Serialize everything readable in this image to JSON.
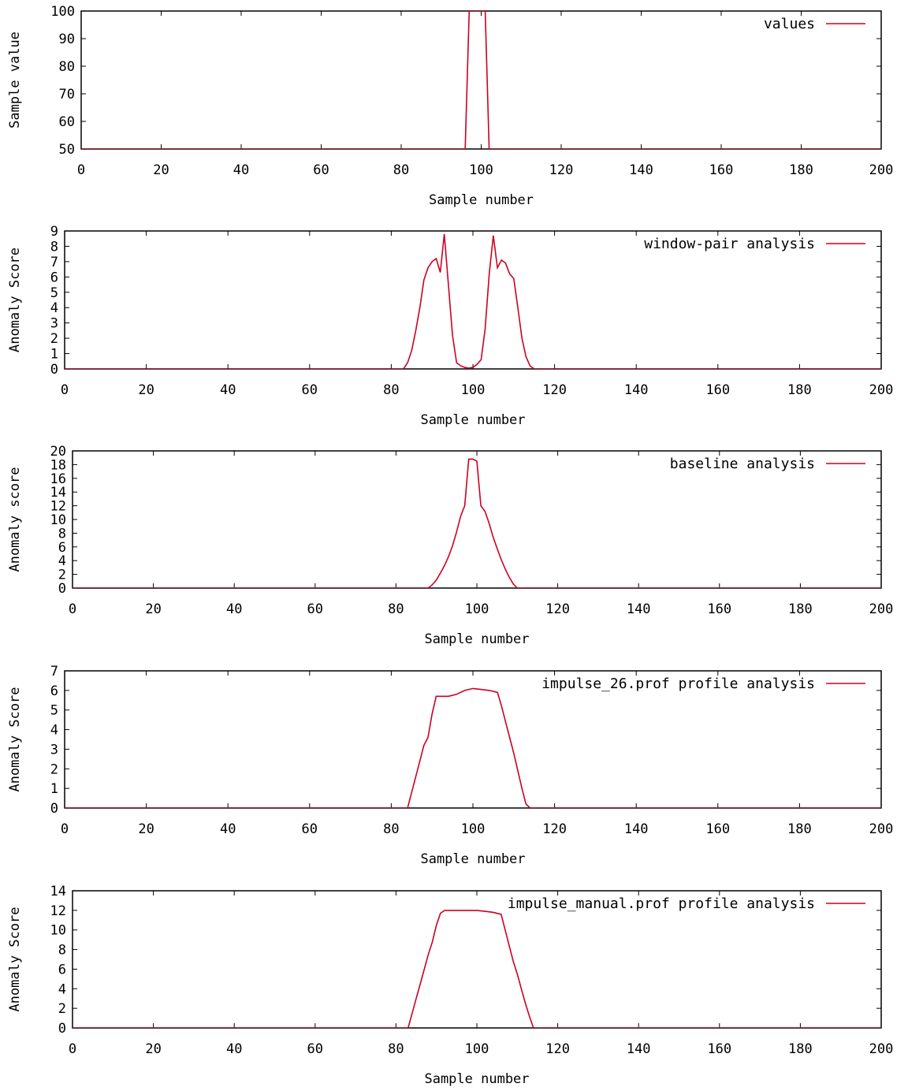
{
  "chart_data": [
    {
      "type": "line",
      "xlabel": "Sample number",
      "ylabel": "Sample value",
      "xlim": [
        0,
        200
      ],
      "ylim": [
        50,
        100
      ],
      "xticks": [
        0,
        20,
        40,
        60,
        80,
        100,
        120,
        140,
        160,
        180,
        200
      ],
      "yticks": [
        50,
        60,
        70,
        80,
        90,
        100
      ],
      "grid": false,
      "legend_position": "top-right",
      "color": "#cc0022",
      "series": [
        {
          "name": "values",
          "x": [
            0,
            96,
            97,
            98,
            99,
            100,
            101,
            102,
            200
          ],
          "y": [
            50,
            50,
            100,
            100,
            100,
            100,
            100,
            50,
            50
          ]
        }
      ]
    },
    {
      "type": "line",
      "xlabel": "Sample number",
      "ylabel": "Anomaly Score",
      "xlim": [
        0,
        200
      ],
      "ylim": [
        0,
        9
      ],
      "xticks": [
        0,
        20,
        40,
        60,
        80,
        100,
        120,
        140,
        160,
        180,
        200
      ],
      "yticks": [
        0,
        1,
        2,
        3,
        4,
        5,
        6,
        7,
        8,
        9
      ],
      "grid": false,
      "legend_position": "top-right",
      "color": "#cc0022",
      "series": [
        {
          "name": "window-pair analysis",
          "x": [
            0,
            83,
            84,
            85,
            86,
            87,
            88,
            89,
            90,
            91,
            92,
            93,
            94,
            95,
            96,
            97,
            98,
            99,
            100,
            101,
            102,
            103,
            104,
            105,
            106,
            107,
            108,
            109,
            110,
            111,
            112,
            113,
            114,
            115,
            200
          ],
          "y": [
            0,
            0,
            0.4,
            1.2,
            2.5,
            4.0,
            5.8,
            6.6,
            7.0,
            7.2,
            6.3,
            8.8,
            5.5,
            2.2,
            0.4,
            0.2,
            0.1,
            0.05,
            0.1,
            0.3,
            0.6,
            2.6,
            6.2,
            8.7,
            6.6,
            7.1,
            6.9,
            6.2,
            5.9,
            4.0,
            2.0,
            0.8,
            0.2,
            0,
            0
          ]
        }
      ]
    },
    {
      "type": "line",
      "xlabel": "Sample number",
      "ylabel": "Anomaly score",
      "xlim": [
        0,
        200
      ],
      "ylim": [
        0,
        20
      ],
      "xticks": [
        0,
        20,
        40,
        60,
        80,
        100,
        120,
        140,
        160,
        180,
        200
      ],
      "yticks": [
        0,
        2,
        4,
        6,
        8,
        10,
        12,
        14,
        16,
        18,
        20
      ],
      "grid": false,
      "legend_position": "top-right",
      "color": "#cc0022",
      "series": [
        {
          "name": "baseline analysis",
          "x": [
            0,
            88,
            89,
            90,
            91,
            92,
            93,
            94,
            95,
            96,
            97,
            98,
            99,
            100,
            101,
            102,
            103,
            104,
            105,
            106,
            107,
            108,
            109,
            110,
            200
          ],
          "y": [
            0,
            0,
            0.5,
            1.2,
            2.2,
            3.3,
            4.6,
            6.2,
            8.2,
            10.5,
            12.0,
            18.8,
            18.8,
            18.5,
            12.0,
            11.2,
            9.5,
            7.5,
            5.8,
            4.2,
            2.8,
            1.6,
            0.6,
            0,
            0
          ]
        }
      ]
    },
    {
      "type": "line",
      "xlabel": "Sample number",
      "ylabel": "Anomaly Score",
      "xlim": [
        0,
        200
      ],
      "ylim": [
        0,
        7
      ],
      "xticks": [
        0,
        20,
        40,
        60,
        80,
        100,
        120,
        140,
        160,
        180,
        200
      ],
      "yticks": [
        0,
        1,
        2,
        3,
        4,
        5,
        6,
        7
      ],
      "grid": false,
      "legend_position": "top-right",
      "color": "#cc0022",
      "series": [
        {
          "name": "impulse_26.prof profile analysis",
          "x": [
            0,
            84,
            85,
            86,
            87,
            88,
            89,
            90,
            91,
            92,
            94,
            96,
            98,
            100,
            102,
            104,
            106,
            107,
            108,
            109,
            110,
            111,
            112,
            113,
            114,
            200
          ],
          "y": [
            0,
            0,
            0.8,
            1.6,
            2.4,
            3.2,
            3.6,
            4.8,
            5.7,
            5.7,
            5.7,
            5.8,
            6.0,
            6.1,
            6.05,
            6.0,
            5.9,
            5.2,
            4.4,
            3.6,
            2.8,
            1.9,
            1.0,
            0.2,
            0,
            0
          ]
        }
      ]
    },
    {
      "type": "line",
      "xlabel": "Sample number",
      "ylabel": "Anomaly Score",
      "xlim": [
        0,
        200
      ],
      "ylim": [
        0,
        14
      ],
      "xticks": [
        0,
        20,
        40,
        60,
        80,
        100,
        120,
        140,
        160,
        180,
        200
      ],
      "yticks": [
        0,
        2,
        4,
        6,
        8,
        10,
        12,
        14
      ],
      "grid": false,
      "legend_position": "top-right",
      "color": "#cc0022",
      "series": [
        {
          "name": "impulse_manual.prof profile analysis",
          "x": [
            0,
            83,
            84,
            85,
            86,
            87,
            88,
            89,
            90,
            91,
            92,
            94,
            96,
            98,
            100,
            102,
            104,
            106,
            107,
            108,
            109,
            110,
            111,
            112,
            113,
            114,
            200
          ],
          "y": [
            0,
            0,
            1.5,
            3.0,
            4.5,
            6.0,
            7.5,
            8.8,
            10.5,
            11.7,
            12.0,
            12.0,
            12.0,
            12.0,
            12.0,
            11.9,
            11.8,
            11.6,
            10.0,
            8.4,
            6.8,
            5.5,
            4.0,
            2.5,
            1.2,
            0,
            0
          ]
        }
      ]
    }
  ]
}
